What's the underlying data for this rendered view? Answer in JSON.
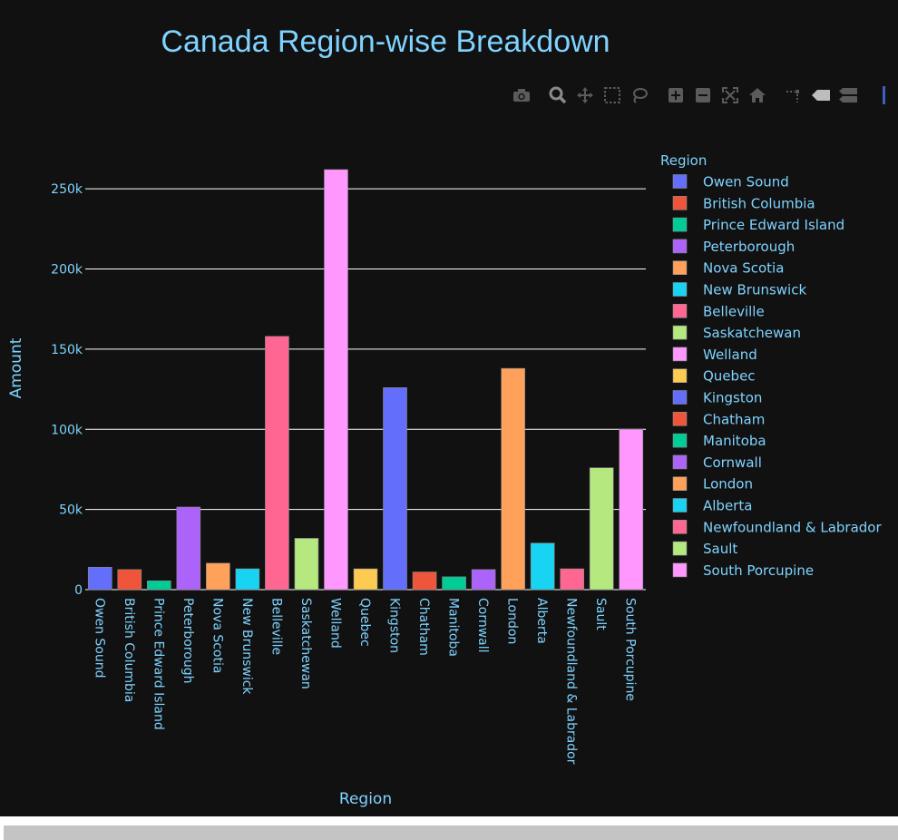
{
  "chart_data": {
    "type": "bar",
    "title": "Canada Region-wise Breakdown",
    "xlabel": "Region",
    "ylabel": "Amount",
    "legend_title": "Region",
    "legend_position": "right",
    "grid": true,
    "ylim": [
      0,
      275000
    ],
    "yticks": [
      0,
      50000,
      100000,
      150000,
      200000,
      250000
    ],
    "ytick_labels": [
      "0",
      "50k",
      "100k",
      "150k",
      "200k",
      "250k"
    ],
    "categories": [
      "Owen Sound",
      "British Columbia",
      "Prince Edward Island",
      "Peterborough",
      "Nova Scotia",
      "New Brunswick",
      "Belleville",
      "Saskatchewan",
      "Welland",
      "Quebec",
      "Kingston",
      "Chatham",
      "Manitoba",
      "Cornwall",
      "London",
      "Alberta",
      "Newfoundland & Labrador",
      "Sault",
      "South Porcupine"
    ],
    "values": [
      14000,
      12500,
      5500,
      51500,
      16500,
      13000,
      158000,
      32000,
      262000,
      13000,
      126000,
      11000,
      8000,
      12500,
      138000,
      29000,
      13000,
      76000,
      100000
    ],
    "colors": [
      "#636efa",
      "#ef553b",
      "#00cc96",
      "#ab63fa",
      "#ffa15a",
      "#19d3f3",
      "#ff6692",
      "#b6e880",
      "#ff97ff",
      "#fecb52",
      "#636efa",
      "#ef553b",
      "#00cc96",
      "#ab63fa",
      "#ffa15a",
      "#19d3f3",
      "#ff6692",
      "#b6e880",
      "#ff97ff"
    ]
  },
  "modebar": {
    "icons": [
      "camera-icon",
      "zoom-icon",
      "pan-icon",
      "box-select-icon",
      "lasso-select-icon",
      "zoom-in-icon",
      "zoom-out-icon",
      "autoscale-icon",
      "reset-axes-icon",
      "spike-lines-icon",
      "hover-closest-icon",
      "hover-compare-icon"
    ]
  }
}
